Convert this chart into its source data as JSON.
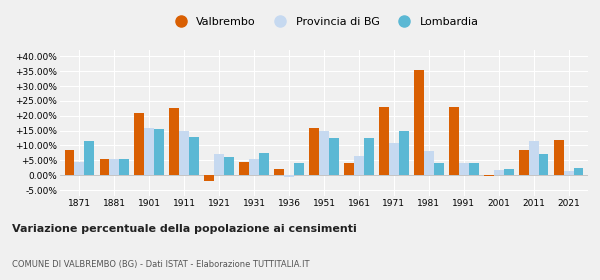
{
  "years": [
    1871,
    1881,
    1901,
    1911,
    1921,
    1931,
    1936,
    1951,
    1961,
    1971,
    1981,
    1991,
    2001,
    2011,
    2021
  ],
  "valbrembo": [
    8.5,
    5.5,
    21.0,
    22.5,
    -2.0,
    4.5,
    2.0,
    16.0,
    4.0,
    23.0,
    35.5,
    23.0,
    -0.3,
    8.5,
    12.0
  ],
  "provincia_bg": [
    4.5,
    5.5,
    16.0,
    15.0,
    7.0,
    5.5,
    -0.5,
    15.0,
    6.5,
    11.0,
    8.0,
    4.0,
    1.8,
    11.5,
    1.5
  ],
  "lombardia": [
    11.5,
    5.5,
    15.5,
    13.0,
    6.0,
    7.5,
    4.0,
    12.5,
    12.5,
    15.0,
    4.0,
    4.0,
    2.0,
    7.0,
    2.5
  ],
  "color_valbrembo": "#d95f02",
  "color_provincia": "#c6d9f0",
  "color_lombardia": "#5bb8d4",
  "ylim": [
    -7,
    42
  ],
  "yticks": [
    -5,
    0,
    5,
    10,
    15,
    20,
    25,
    30,
    35,
    40
  ],
  "title_main": "Variazione percentuale della popolazione ai censimenti",
  "title_sub": "COMUNE DI VALBREMBO (BG) - Dati ISTAT - Elaborazione TUTTITALIA.IT",
  "legend_labels": [
    "Valbrembo",
    "Provincia di BG",
    "Lombardia"
  ],
  "background_color": "#f0f0f0",
  "grid_color": "#ffffff"
}
